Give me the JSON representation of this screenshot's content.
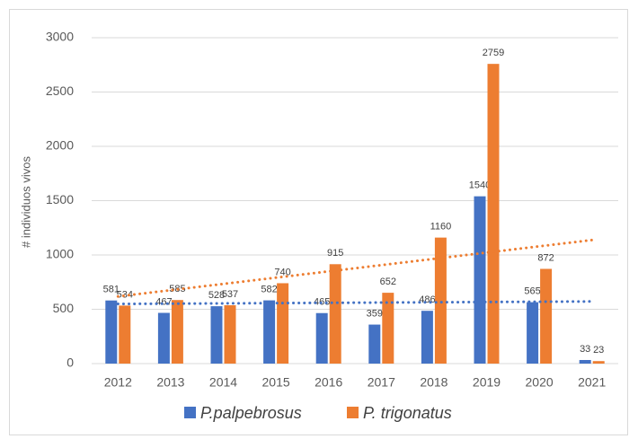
{
  "chart_data": {
    "type": "bar",
    "y_label": "# individuos vivos",
    "categories": [
      "2012",
      "2013",
      "2014",
      "2015",
      "2016",
      "2017",
      "2018",
      "2019",
      "2020",
      "2021"
    ],
    "series": [
      {
        "name": "P.palpebrosus",
        "color": "#4472c4",
        "values": [
          581,
          467,
          528,
          582,
          465,
          359,
          486,
          1540,
          565,
          33
        ]
      },
      {
        "name": "P. trigonatus",
        "color": "#ed7d31",
        "values": [
          534,
          585,
          537,
          740,
          915,
          652,
          1160,
          2759,
          872,
          23
        ]
      }
    ],
    "ylim": [
      0,
      3000
    ],
    "yticks": [
      0,
      500,
      1000,
      1500,
      2000,
      2500,
      3000
    ],
    "grid": true,
    "trendline": true,
    "legend": "bottom"
  }
}
